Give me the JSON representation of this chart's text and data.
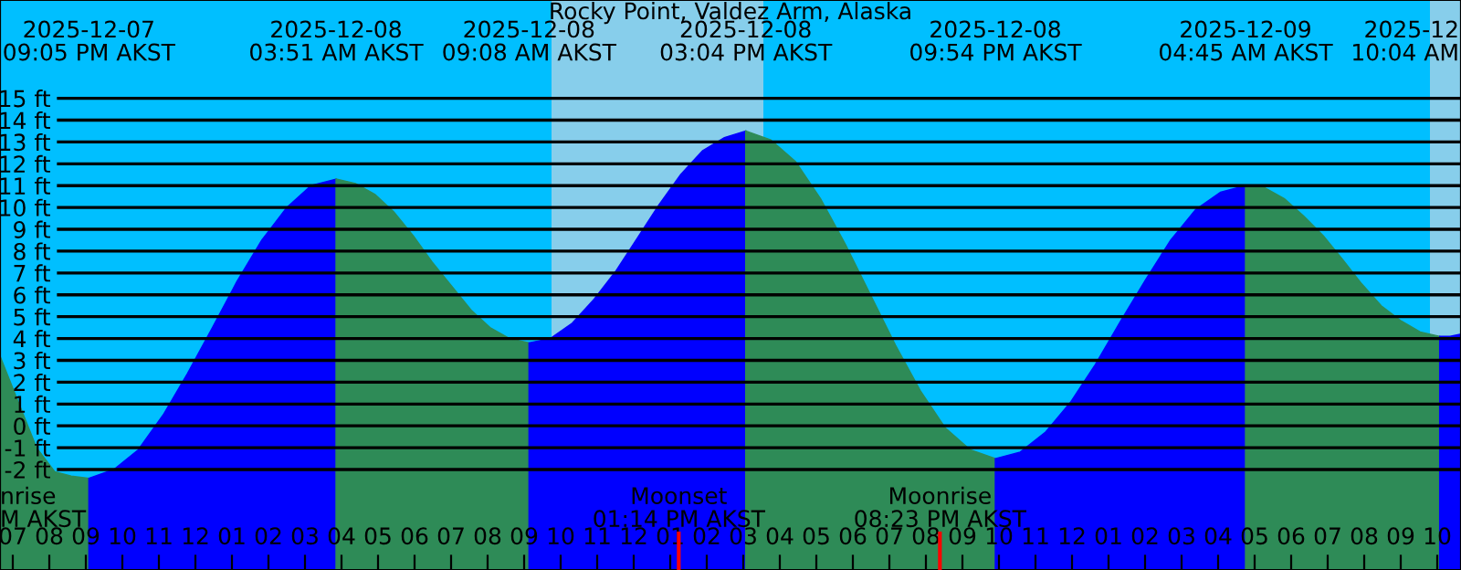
{
  "chart_data": {
    "type": "area",
    "title": "Rocky Point, Valdez Arm, Alaska",
    "xlim": [
      "2025-12-07T18:39",
      "2025-12-09T10:39"
    ],
    "ylim": [
      -6.6,
      19.5
    ],
    "xticks": [
      {
        "value": "2025-12-07T19:00",
        "label": "07"
      },
      {
        "value": "2025-12-07T20:00",
        "label": "08"
      },
      {
        "value": "2025-12-07T21:00",
        "label": "09"
      },
      {
        "value": "2025-12-07T22:00",
        "label": "10"
      },
      {
        "value": "2025-12-07T23:00",
        "label": "11"
      },
      {
        "value": "2025-12-08T00:00",
        "label": "12"
      },
      {
        "value": "2025-12-08T01:00",
        "label": "01"
      },
      {
        "value": "2025-12-08T02:00",
        "label": "02"
      },
      {
        "value": "2025-12-08T03:00",
        "label": "03"
      },
      {
        "value": "2025-12-08T04:00",
        "label": "04"
      },
      {
        "value": "2025-12-08T05:00",
        "label": "05"
      },
      {
        "value": "2025-12-08T06:00",
        "label": "06"
      },
      {
        "value": "2025-12-08T07:00",
        "label": "07"
      },
      {
        "value": "2025-12-08T08:00",
        "label": "08"
      },
      {
        "value": "2025-12-08T09:00",
        "label": "09"
      },
      {
        "value": "2025-12-08T10:00",
        "label": "10"
      },
      {
        "value": "2025-12-08T11:00",
        "label": "11"
      },
      {
        "value": "2025-12-08T12:00",
        "label": "12"
      },
      {
        "value": "2025-12-08T13:00",
        "label": "01"
      },
      {
        "value": "2025-12-08T14:00",
        "label": "02"
      },
      {
        "value": "2025-12-08T15:00",
        "label": "03"
      },
      {
        "value": "2025-12-08T16:00",
        "label": "04"
      },
      {
        "value": "2025-12-08T17:00",
        "label": "05"
      },
      {
        "value": "2025-12-08T18:00",
        "label": "06"
      },
      {
        "value": "2025-12-08T19:00",
        "label": "07"
      },
      {
        "value": "2025-12-08T20:00",
        "label": "08"
      },
      {
        "value": "2025-12-08T21:00",
        "label": "09"
      },
      {
        "value": "2025-12-08T22:00",
        "label": "10"
      },
      {
        "value": "2025-12-08T23:00",
        "label": "11"
      },
      {
        "value": "2025-12-09T00:00",
        "label": "12"
      },
      {
        "value": "2025-12-09T01:00",
        "label": "01"
      },
      {
        "value": "2025-12-09T02:00",
        "label": "02"
      },
      {
        "value": "2025-12-09T03:00",
        "label": "03"
      },
      {
        "value": "2025-12-09T04:00",
        "label": "04"
      },
      {
        "value": "2025-12-09T05:00",
        "label": "05"
      },
      {
        "value": "2025-12-09T06:00",
        "label": "06"
      },
      {
        "value": "2025-12-09T07:00",
        "label": "07"
      },
      {
        "value": "2025-12-09T08:00",
        "label": "08"
      },
      {
        "value": "2025-12-09T09:00",
        "label": "09"
      },
      {
        "value": "2025-12-09T10:00",
        "label": "10"
      }
    ],
    "yticks": [
      {
        "value": -2,
        "label": "-2 ft"
      },
      {
        "value": -1,
        "label": "-1 ft"
      },
      {
        "value": 0,
        "label": "0 ft"
      },
      {
        "value": 1,
        "label": "1 ft"
      },
      {
        "value": 2,
        "label": "2 ft"
      },
      {
        "value": 3,
        "label": "3 ft"
      },
      {
        "value": 4,
        "label": "4 ft"
      },
      {
        "value": 5,
        "label": "5 ft"
      },
      {
        "value": 6,
        "label": "6 ft"
      },
      {
        "value": 7,
        "label": "7 ft"
      },
      {
        "value": 8,
        "label": "8 ft"
      },
      {
        "value": 9,
        "label": "9 ft"
      },
      {
        "value": 10,
        "label": "10 ft"
      },
      {
        "value": 11,
        "label": "11 ft"
      },
      {
        "value": 12,
        "label": "12 ft"
      },
      {
        "value": 13,
        "label": "13 ft"
      },
      {
        "value": 14,
        "label": "14 ft"
      },
      {
        "value": 15,
        "label": "15 ft"
      }
    ],
    "grid": "y",
    "legend": false,
    "bands": [
      {
        "axis": "x",
        "from": "2025-12-07T18:39",
        "to": "2025-12-08T09:45",
        "color": "#00bfff"
      },
      {
        "axis": "x",
        "from": "2025-12-08T09:45",
        "to": "2025-12-08T15:33",
        "color": "#87ceeb"
      },
      {
        "axis": "x",
        "from": "2025-12-08T15:33",
        "to": "2025-12-09T09:48",
        "color": "#00bfff"
      },
      {
        "axis": "x",
        "from": "2025-12-09T09:48",
        "to": "2025-12-09T10:39",
        "color": "#87ceeb"
      }
    ],
    "ref_lines": [
      {
        "axis": "x",
        "value": "2025-12-08T13:14",
        "label": "Moonset\n01:14 PM AKST",
        "color": "#ff0000"
      },
      {
        "axis": "x",
        "value": "2025-12-08T20:23",
        "label": "Moonrise\n08:23 PM AKST",
        "color": "#ff0000"
      }
    ],
    "series": [
      {
        "color": "#2e8b57",
        "x": [
          "2025-12-07T18:39",
          "2025-12-07T19:09",
          "2025-12-07T19:39",
          "2025-12-07T20:09",
          "2025-12-07T20:36",
          "2025-12-07T21:05"
        ],
        "values": [
          3.2,
          1.1,
          -1.0,
          -2.1,
          -2.3,
          -2.4
        ]
      },
      {
        "color": "#0000ff",
        "x": [
          "2025-12-07T21:05",
          "2025-12-07T21:46",
          "2025-12-07T22:26",
          "2025-12-07T23:07",
          "2025-12-07T23:47",
          "2025-12-08T00:28",
          "2025-12-08T01:08",
          "2025-12-08T01:49",
          "2025-12-08T02:30",
          "2025-12-08T03:10",
          "2025-12-08T03:51"
        ],
        "values": [
          -2.4,
          -2.0,
          -1.1,
          0.5,
          2.4,
          4.5,
          6.6,
          8.5,
          10.0,
          11.0,
          11.3
        ]
      },
      {
        "color": "#2e8b57",
        "x": [
          "2025-12-08T03:51",
          "2025-12-08T04:23",
          "2025-12-08T04:55",
          "2025-12-08T05:26",
          "2025-12-08T05:58",
          "2025-12-08T06:29",
          "2025-12-08T07:01",
          "2025-12-08T07:33",
          "2025-12-08T08:04",
          "2025-12-08T08:36",
          "2025-12-08T09:08"
        ],
        "values": [
          11.3,
          11.1,
          10.6,
          9.8,
          8.7,
          7.5,
          6.4,
          5.3,
          4.5,
          4.0,
          3.8
        ]
      },
      {
        "color": "#0000ff",
        "x": [
          "2025-12-08T09:08",
          "2025-12-08T09:43",
          "2025-12-08T10:19",
          "2025-12-08T10:55",
          "2025-12-08T11:31",
          "2025-12-08T12:06",
          "2025-12-08T12:41",
          "2025-12-08T13:17",
          "2025-12-08T13:53",
          "2025-12-08T14:29",
          "2025-12-08T15:04"
        ],
        "values": [
          3.8,
          4.0,
          4.7,
          5.8,
          7.1,
          8.6,
          10.1,
          11.5,
          12.6,
          13.2,
          13.5
        ]
      },
      {
        "color": "#2e8b57",
        "x": [
          "2025-12-08T15:04",
          "2025-12-08T15:45",
          "2025-12-08T16:26",
          "2025-12-08T17:07",
          "2025-12-08T17:48",
          "2025-12-08T18:29",
          "2025-12-08T19:10",
          "2025-12-08T19:51",
          "2025-12-08T20:32",
          "2025-12-08T21:13",
          "2025-12-08T21:54"
        ],
        "values": [
          13.5,
          13.1,
          12.1,
          10.4,
          8.3,
          6.0,
          3.7,
          1.6,
          -0.1,
          -1.1,
          -1.5
        ]
      },
      {
        "color": "#0000ff",
        "x": [
          "2025-12-08T21:54",
          "2025-12-08T22:35",
          "2025-12-08T23:16",
          "2025-12-08T23:58",
          "2025-12-09T00:38",
          "2025-12-09T01:20",
          "2025-12-09T02:01",
          "2025-12-09T02:42",
          "2025-12-09T03:23",
          "2025-12-09T04:04",
          "2025-12-09T04:45"
        ],
        "values": [
          -1.5,
          -1.2,
          -0.3,
          1.1,
          2.8,
          4.8,
          6.7,
          8.5,
          9.9,
          10.7,
          11.0
        ]
      },
      {
        "color": "#2e8b57",
        "x": [
          "2025-12-09T04:45",
          "2025-12-09T05:17",
          "2025-12-09T05:49",
          "2025-12-09T06:21",
          "2025-12-09T06:53",
          "2025-12-09T07:25",
          "2025-12-09T07:56",
          "2025-12-09T08:28",
          "2025-12-09T09:01",
          "2025-12-09T09:32",
          "2025-12-09T10:04"
        ],
        "values": [
          11.0,
          10.9,
          10.4,
          9.6,
          8.7,
          7.6,
          6.5,
          5.5,
          4.8,
          4.3,
          4.1
        ]
      },
      {
        "color": "#0000ff",
        "x": [
          "2025-12-09T10:04",
          "2025-12-09T10:21",
          "2025-12-09T10:39"
        ],
        "values": [
          4.1,
          4.1,
          4.2
        ]
      }
    ],
    "annotations": [
      "2025-12-07\n09:05 PM AKST",
      "2025-12-08\n03:51 AM AKST",
      "2025-12-08\n09:08 AM AKST",
      "2025-12-08\n03:04 PM AKST",
      "2025-12-08\n09:54 PM AKST",
      "2025-12-09\n04:45 AM AKST",
      "2025-12\n10:04 AM",
      "nrise\nM AKST"
    ]
  }
}
